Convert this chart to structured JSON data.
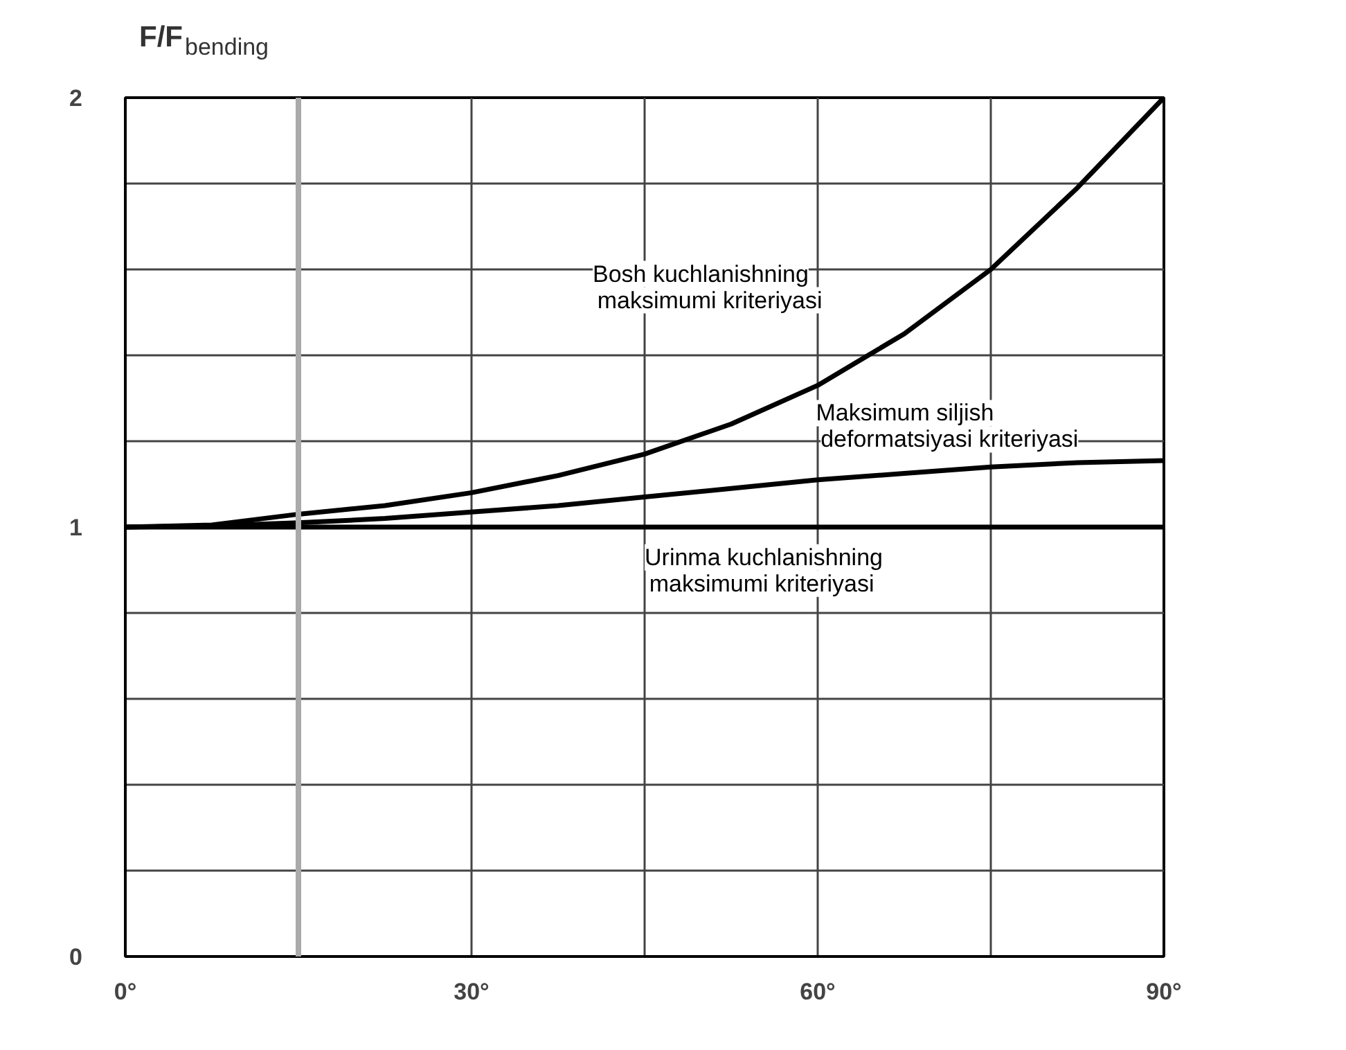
{
  "chart_data": {
    "type": "line",
    "ylabel": "F/F$_{bending}$",
    "x": [
      0,
      7.5,
      15,
      22.5,
      30,
      37.5,
      45,
      52.5,
      60,
      67.5,
      75,
      82.5,
      90
    ],
    "series": [
      {
        "name": "Bosh kuchlanishning maksimumi kriteriyasi",
        "color": "#000000",
        "values": [
          1,
          1.005,
          1.03,
          1.05,
          1.08,
          1.12,
          1.17,
          1.24,
          1.33,
          1.45,
          1.6,
          1.79,
          2.0
        ]
      },
      {
        "name": "Maksimum siljish deformatsiyasi kriteriyasi",
        "color": "#000000",
        "values": [
          1,
          1.003,
          1.01,
          1.02,
          1.035,
          1.05,
          1.07,
          1.09,
          1.11,
          1.125,
          1.14,
          1.15,
          1.155
        ]
      },
      {
        "name": "Urinma kuchlanishning maksimumi kriteriyasi",
        "color": "#000000",
        "values": [
          1,
          1,
          1,
          1,
          1,
          1,
          1,
          1,
          1,
          1,
          1,
          1,
          1
        ]
      }
    ],
    "xlim": [
      0,
      90
    ],
    "ylim": [
      0,
      2
    ],
    "xticks": [
      {
        "value": 0,
        "label": "0°"
      },
      {
        "value": 15,
        "label": null
      },
      {
        "value": 30,
        "label": "30°"
      },
      {
        "value": 45,
        "label": null
      },
      {
        "value": 60,
        "label": "60°"
      },
      {
        "value": 75,
        "label": null
      },
      {
        "value": 90,
        "label": "90°"
      }
    ],
    "yticks": [
      0,
      {
        "value": 0.2,
        "label": null
      },
      {
        "value": 0.4,
        "label": null
      },
      {
        "value": 0.6,
        "label": null
      },
      {
        "value": 0.8,
        "label": null
      },
      1,
      {
        "value": 1.2,
        "label": null
      },
      {
        "value": 1.4,
        "label": null
      },
      {
        "value": 1.6,
        "label": null
      },
      {
        "value": 1.8,
        "label": null
      },
      2
    ],
    "ref_lines": [
      {
        "axis": "x",
        "value": 15,
        "color": "#aaaaaa"
      }
    ],
    "grid": true,
    "marker": "none",
    "line_style": "solid"
  }
}
